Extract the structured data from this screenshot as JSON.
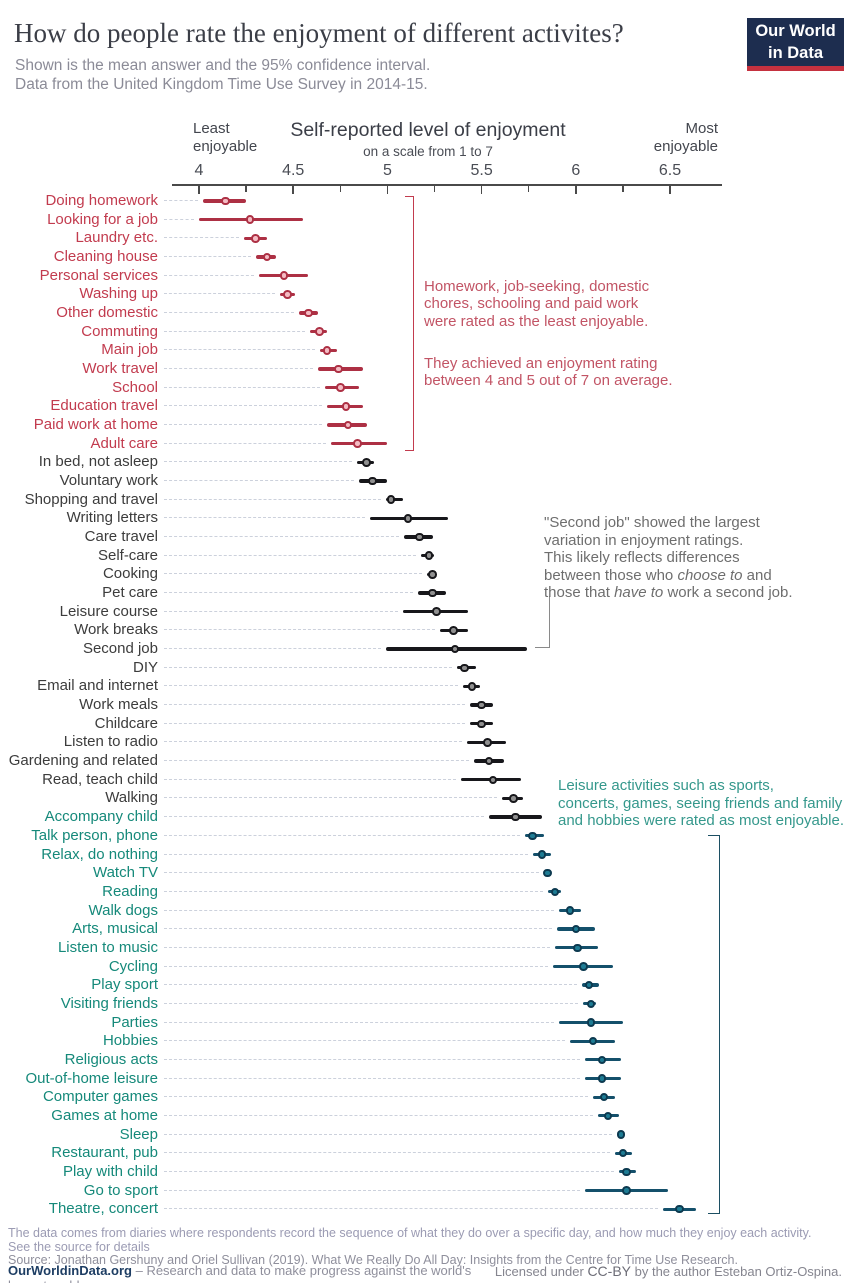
{
  "header": {
    "title": "How do people rate the enjoyment of different activites?",
    "subtitle": "Shown is the mean answer and the 95% confidence interval.\nData from the United Kingdom Time Use Survey in 2014-15.",
    "logo_line1": "Our World",
    "logo_line2": "in Data"
  },
  "colors": {
    "least": {
      "label": "#c23b4e",
      "bar": "#ad3044",
      "dot_fill": "#f4bcc4",
      "dot_stroke": "#ad3044"
    },
    "mid": {
      "label": "#3c3c3c",
      "bar": "#17171b",
      "dot_fill": "#909090",
      "dot_stroke": "#17171b"
    },
    "most": {
      "label": "#15897a",
      "bar": "#14506b",
      "dot_fill": "#1e7c94",
      "dot_stroke": "#0d3a50"
    },
    "logo_bg": "#1d2d4f",
    "logo_stripe": "#c5313f"
  },
  "chart_data": {
    "type": "scatter",
    "title": "Self-reported level of enjoyment",
    "subtitle": "on a scale from 1 to 7",
    "xlabel_left": "Least\nenjoyable",
    "xlabel_right": "Most\nenjoyable",
    "xlim": [
      4,
      6.5
    ],
    "x_major_ticks": [
      4,
      4.5,
      5,
      5.5,
      6,
      6.5
    ],
    "x_minor_step": 0.25,
    "grid": false,
    "legend": "none",
    "note": "each row shows mean enjoyment with 95% confidence interval [lo, hi]",
    "rows": [
      {
        "label": "Doing homework",
        "group": "least",
        "mean": 4.14,
        "lo": 4.02,
        "hi": 4.25
      },
      {
        "label": "Looking for a job",
        "group": "least",
        "mean": 4.27,
        "lo": 4.0,
        "hi": 4.55
      },
      {
        "label": "Laundry etc.",
        "group": "least",
        "mean": 4.3,
        "lo": 4.24,
        "hi": 4.36
      },
      {
        "label": "Cleaning house",
        "group": "least",
        "mean": 4.36,
        "lo": 4.3,
        "hi": 4.41
      },
      {
        "label": "Personal services",
        "group": "least",
        "mean": 4.45,
        "lo": 4.32,
        "hi": 4.58
      },
      {
        "label": "Washing up",
        "group": "least",
        "mean": 4.47,
        "lo": 4.43,
        "hi": 4.51
      },
      {
        "label": "Other domestic",
        "group": "least",
        "mean": 4.58,
        "lo": 4.53,
        "hi": 4.63
      },
      {
        "label": "Commuting",
        "group": "least",
        "mean": 4.64,
        "lo": 4.59,
        "hi": 4.68
      },
      {
        "label": "Main job",
        "group": "least",
        "mean": 4.68,
        "lo": 4.64,
        "hi": 4.73
      },
      {
        "label": "Work travel",
        "group": "least",
        "mean": 4.74,
        "lo": 4.63,
        "hi": 4.87
      },
      {
        "label": "School",
        "group": "least",
        "mean": 4.75,
        "lo": 4.67,
        "hi": 4.85
      },
      {
        "label": "Education travel",
        "group": "least",
        "mean": 4.78,
        "lo": 4.68,
        "hi": 4.87
      },
      {
        "label": "Paid work at home",
        "group": "least",
        "mean": 4.79,
        "lo": 4.68,
        "hi": 4.89
      },
      {
        "label": "Adult care",
        "group": "least",
        "mean": 4.84,
        "lo": 4.7,
        "hi": 5.0
      },
      {
        "label": "In bed, not asleep",
        "group": "mid",
        "mean": 4.89,
        "lo": 4.84,
        "hi": 4.93
      },
      {
        "label": "Voluntary work",
        "group": "mid",
        "mean": 4.92,
        "lo": 4.85,
        "hi": 5.0
      },
      {
        "label": "Shopping and travel",
        "group": "mid",
        "mean": 5.02,
        "lo": 4.99,
        "hi": 5.08
      },
      {
        "label": "Writing letters",
        "group": "mid",
        "mean": 5.11,
        "lo": 4.91,
        "hi": 5.32
      },
      {
        "label": "Care travel",
        "group": "mid",
        "mean": 5.17,
        "lo": 5.09,
        "hi": 5.24
      },
      {
        "label": "Self-care",
        "group": "mid",
        "mean": 5.22,
        "lo": 5.18,
        "hi": 5.25
      },
      {
        "label": "Cooking",
        "group": "mid",
        "mean": 5.24,
        "lo": 5.21,
        "hi": 5.26
      },
      {
        "label": "Pet care",
        "group": "mid",
        "mean": 5.24,
        "lo": 5.16,
        "hi": 5.31
      },
      {
        "label": "Leisure course",
        "group": "mid",
        "mean": 5.26,
        "lo": 5.08,
        "hi": 5.43
      },
      {
        "label": "Work breaks",
        "group": "mid",
        "mean": 5.35,
        "lo": 5.28,
        "hi": 5.43
      },
      {
        "label": "Second job",
        "group": "mid",
        "mean": 5.36,
        "lo": 4.99,
        "hi": 5.74
      },
      {
        "label": "DIY",
        "group": "mid",
        "mean": 5.41,
        "lo": 5.37,
        "hi": 5.47
      },
      {
        "label": "Email and internet",
        "group": "mid",
        "mean": 5.45,
        "lo": 5.4,
        "hi": 5.49
      },
      {
        "label": "Work meals",
        "group": "mid",
        "mean": 5.5,
        "lo": 5.44,
        "hi": 5.56
      },
      {
        "label": "Childcare",
        "group": "mid",
        "mean": 5.5,
        "lo": 5.44,
        "hi": 5.56
      },
      {
        "label": "Listen to radio",
        "group": "mid",
        "mean": 5.53,
        "lo": 5.42,
        "hi": 5.63
      },
      {
        "label": "Gardening and related",
        "group": "mid",
        "mean": 5.54,
        "lo": 5.46,
        "hi": 5.62
      },
      {
        "label": "Read, teach child",
        "group": "mid",
        "mean": 5.56,
        "lo": 5.39,
        "hi": 5.71
      },
      {
        "label": "Walking",
        "group": "mid",
        "mean": 5.67,
        "lo": 5.61,
        "hi": 5.72
      },
      {
        "label": "Accompany child",
        "group": "most",
        "bar_group": "mid",
        "mean": 5.68,
        "lo": 5.54,
        "hi": 5.82
      },
      {
        "label": "Talk person, phone",
        "group": "most",
        "mean": 5.77,
        "lo": 5.73,
        "hi": 5.83
      },
      {
        "label": "Relax, do nothing",
        "group": "most",
        "mean": 5.82,
        "lo": 5.77,
        "hi": 5.87
      },
      {
        "label": "Watch TV",
        "group": "most",
        "mean": 5.85,
        "lo": 5.83,
        "hi": 5.87
      },
      {
        "label": "Reading",
        "group": "most",
        "mean": 5.89,
        "lo": 5.85,
        "hi": 5.92
      },
      {
        "label": "Walk dogs",
        "group": "most",
        "mean": 5.97,
        "lo": 5.91,
        "hi": 6.03
      },
      {
        "label": "Arts, musical",
        "group": "most",
        "mean": 6.0,
        "lo": 5.9,
        "hi": 6.1
      },
      {
        "label": "Listen to music",
        "group": "most",
        "mean": 6.01,
        "lo": 5.89,
        "hi": 6.12
      },
      {
        "label": "Cycling",
        "group": "most",
        "mean": 6.04,
        "lo": 5.88,
        "hi": 6.2
      },
      {
        "label": "Play sport",
        "group": "most",
        "mean": 6.07,
        "lo": 6.03,
        "hi": 6.12
      },
      {
        "label": "Visiting friends",
        "group": "most",
        "mean": 6.08,
        "lo": 6.04,
        "hi": 6.11
      },
      {
        "label": "Parties",
        "group": "most",
        "mean": 6.08,
        "lo": 5.91,
        "hi": 6.25
      },
      {
        "label": "Hobbies",
        "group": "most",
        "mean": 6.09,
        "lo": 5.97,
        "hi": 6.21
      },
      {
        "label": "Religious acts",
        "group": "most",
        "mean": 6.14,
        "lo": 6.05,
        "hi": 6.24
      },
      {
        "label": "Out-of-home leisure",
        "group": "most",
        "mean": 6.14,
        "lo": 6.05,
        "hi": 6.24
      },
      {
        "label": "Computer games",
        "group": "most",
        "mean": 6.15,
        "lo": 6.09,
        "hi": 6.21
      },
      {
        "label": "Games at home",
        "group": "most",
        "mean": 6.17,
        "lo": 6.12,
        "hi": 6.23
      },
      {
        "label": "Sleep",
        "group": "most",
        "mean": 6.24,
        "lo": 6.22,
        "hi": 6.26
      },
      {
        "label": "Restaurant, pub",
        "group": "most",
        "mean": 6.25,
        "lo": 6.21,
        "hi": 6.3
      },
      {
        "label": "Play with child",
        "group": "most",
        "mean": 6.27,
        "lo": 6.23,
        "hi": 6.32
      },
      {
        "label": "Go to sport",
        "group": "most",
        "mean": 6.27,
        "lo": 6.05,
        "hi": 6.49
      },
      {
        "label": "Theatre, concert",
        "group": "most",
        "mean": 6.55,
        "lo": 6.46,
        "hi": 6.64
      }
    ]
  },
  "annotations": {
    "least": {
      "para1": "Homework, job-seeking, domestic\nchores, schooling and paid work\nwere rated as the least enjoyable.",
      "para2": "They achieved an enjoyment rating\nbetween 4 and 5 out of 7 on average.",
      "color": "#c25465"
    },
    "second_job": {
      "segments": [
        {
          "text": "\"Second job\" showed the largest\n variation in enjoyment ratings.\nThis likely reflects differences\nbetween those who ",
          "italic": false
        },
        {
          "text": "choose to",
          "italic": true
        },
        {
          "text": " and\nthose that ",
          "italic": false
        },
        {
          "text": "have to",
          "italic": true
        },
        {
          "text": " work a second job.",
          "italic": false
        }
      ],
      "color": "#6e6e6e"
    },
    "most": {
      "text": "Leisure activities such as sports,\nconcerts, games, seeing friends and family\nand hobbies were rated as most enjoyable.",
      "color": "#35988c"
    }
  },
  "footer": {
    "note_line1": "The data comes from diaries where respondents record the sequence of what they do over a specific day, and how much they enjoy each activity.",
    "note_line2": "See the source for details",
    "source_line": "Source: Jonathan Gershuny and Oriel Sullivan (2019). What We Really Do All Day: Insights from the Centre for Time Use Research.",
    "owid_link": "OurWorldinData.org",
    "owid_tagline": " – Research and data to make progress against the world's largest problems.",
    "license_prefix": "Licensed under ",
    "license_link": "CC-BY",
    "license_suffix": " by the author Esteban Ortiz-Ospina."
  }
}
